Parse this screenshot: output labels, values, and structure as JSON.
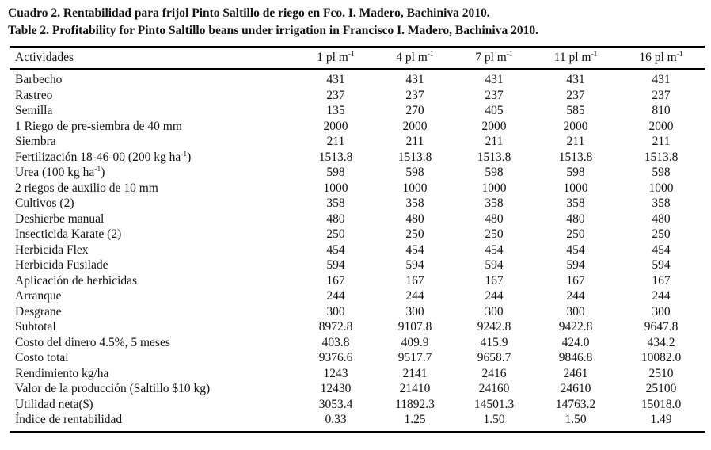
{
  "page": {
    "caption_es": "Cuadro 2. Rentabilidad para frijol Pinto Saltillo de riego en Fco. I. Madero, Bachiniva 2010.",
    "caption_en": "Table 2. Profitability for Pinto Saltillo beans under irrigation in Francisco I. Madero, Bachiniva 2010."
  },
  "table": {
    "activities_header": "Actividades",
    "column_headers": [
      "1 pl m^-1",
      "4 pl m^-1",
      "7 pl m^-1",
      "11 pl m^-1",
      "16 pl m^-1"
    ],
    "rows": [
      {
        "label": "Barbecho",
        "values": [
          "431",
          "431",
          "431",
          "431",
          "431"
        ]
      },
      {
        "label": "Rastreo",
        "values": [
          "237",
          "237",
          "237",
          "237",
          "237"
        ]
      },
      {
        "label": "Semilla",
        "values": [
          "135",
          "270",
          "405",
          "585",
          "810"
        ]
      },
      {
        "label": "1 Riego de pre-siembra de 40 mm",
        "values": [
          "2000",
          "2000",
          "2000",
          "2000",
          "2000"
        ]
      },
      {
        "label": "Siembra",
        "values": [
          "211",
          "211",
          "211",
          "211",
          "211"
        ]
      },
      {
        "label": "Fertilización 18-46-00 (200 kg ha^-1)",
        "values": [
          "1513.8",
          "1513.8",
          "1513.8",
          "1513.8",
          "1513.8"
        ]
      },
      {
        "label": "Urea (100 kg ha^-1)",
        "values": [
          "598",
          "598",
          "598",
          "598",
          "598"
        ]
      },
      {
        "label": "2 riegos de auxilio de 10 mm",
        "values": [
          "1000",
          "1000",
          "1000",
          "1000",
          "1000"
        ]
      },
      {
        "label": "Cultivos (2)",
        "values": [
          "358",
          "358",
          "358",
          "358",
          "358"
        ]
      },
      {
        "label": "Deshierbe manual",
        "values": [
          "480",
          "480",
          "480",
          "480",
          "480"
        ]
      },
      {
        "label": "Insecticida Karate (2)",
        "values": [
          "250",
          "250",
          "250",
          "250",
          "250"
        ]
      },
      {
        "label": "Herbicida Flex",
        "values": [
          "454",
          "454",
          "454",
          "454",
          "454"
        ]
      },
      {
        "label": "Herbicida Fusilade",
        "values": [
          "594",
          "594",
          "594",
          "594",
          "594"
        ]
      },
      {
        "label": "Aplicación de herbicidas",
        "values": [
          "167",
          "167",
          "167",
          "167",
          "167"
        ]
      },
      {
        "label": "Arranque",
        "values": [
          "244",
          "244",
          "244",
          "244",
          "244"
        ]
      },
      {
        "label": "Desgrane",
        "values": [
          "300",
          "300",
          "300",
          "300",
          "300"
        ]
      },
      {
        "label": "Subtotal",
        "values": [
          "8972.8",
          "9107.8",
          "9242.8",
          "9422.8",
          "9647.8"
        ]
      },
      {
        "label": "Costo del dinero 4.5%, 5 meses",
        "values": [
          "403.8",
          "409.9",
          "415.9",
          "424.0",
          "434.2"
        ]
      },
      {
        "label": "Costo total",
        "values": [
          "9376.6",
          "9517.7",
          "9658.7",
          "9846.8",
          "10082.0"
        ]
      },
      {
        "label": "Rendimiento kg/ha",
        "values": [
          "1243",
          "2141",
          "2416",
          "2461",
          "2510"
        ]
      },
      {
        "label": "Valor de la producción (Saltillo $10 kg)",
        "values": [
          "12430",
          "21410",
          "24160",
          "24610",
          "25100"
        ]
      },
      {
        "label": "Utilidad neta($)",
        "values": [
          "3053.4",
          "11892.3",
          "14501.3",
          "14763.2",
          "15018.0"
        ]
      },
      {
        "label": "Índice de rentabilidad",
        "values": [
          "0.33",
          "1.25",
          "1.50",
          "1.50",
          "1.49"
        ]
      }
    ]
  }
}
